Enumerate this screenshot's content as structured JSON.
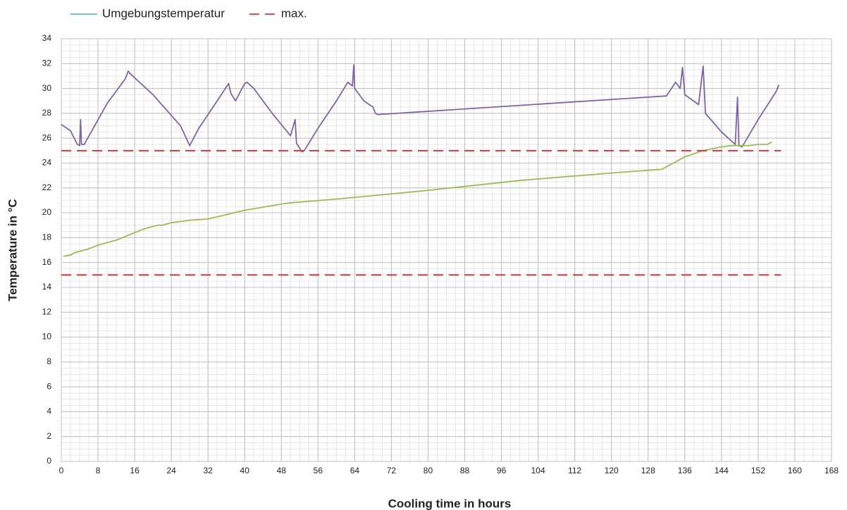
{
  "chart_data": {
    "type": "line",
    "xlabel": "Cooling time in hours",
    "ylabel": "Temperature in °C",
    "xlim": [
      0,
      168
    ],
    "ylim": [
      0,
      34
    ],
    "xticks": [
      0,
      8,
      16,
      24,
      32,
      40,
      48,
      56,
      64,
      72,
      80,
      88,
      96,
      104,
      112,
      120,
      128,
      136,
      144,
      152,
      160,
      168
    ],
    "yticks": [
      0,
      2,
      4,
      6,
      8,
      10,
      12,
      14,
      16,
      18,
      20,
      22,
      24,
      26,
      28,
      30,
      32,
      34
    ],
    "grid": true,
    "xminor": 2,
    "yminor": 0.5,
    "legend": [
      {
        "label": "Umgebungstemperatur",
        "color": "#4bacc6",
        "dashed": false
      },
      {
        "label": "max.",
        "color": "#d9383a",
        "dashed": true
      }
    ],
    "series": [
      {
        "color": "#8064a2",
        "dashed": false,
        "x": [
          0,
          2,
          3.5,
          4,
          4.2,
          4.4,
          5,
          10,
          14,
          14.6,
          15,
          20,
          26,
          28,
          30,
          34,
          36.5,
          37,
          38,
          40,
          40.5,
          42,
          46,
          50,
          51,
          51.3,
          52.5,
          53,
          56,
          60,
          62,
          62.5,
          63.5,
          63.8,
          64,
          66,
          68,
          68.5,
          69,
          132,
          134,
          135,
          135.5,
          136,
          139,
          140,
          140.5,
          144,
          147,
          147.5,
          147.8,
          148.5,
          152,
          156,
          156.5
        ],
        "values": [
          27.1,
          26.6,
          25.5,
          25.4,
          27.5,
          25.5,
          25.5,
          28.8,
          30.8,
          31.4,
          31.2,
          29.5,
          27,
          25.4,
          26.8,
          29,
          30.4,
          29.6,
          29,
          30.4,
          30.5,
          30,
          28,
          26.2,
          27.5,
          25.6,
          24.9,
          25,
          26.8,
          29,
          30.2,
          30.5,
          30.2,
          31.9,
          30,
          29,
          28.5,
          28,
          27.9,
          29.4,
          30.5,
          30,
          31.7,
          29.5,
          28.7,
          31.8,
          28,
          26.5,
          25.5,
          29.3,
          25.4,
          25.3,
          27.5,
          29.8,
          30.3
        ]
      },
      {
        "color": "#9bbb59",
        "dashed": false,
        "x": [
          0.5,
          2,
          3,
          6,
          8,
          12,
          14,
          18,
          21,
          22,
          24,
          26,
          28,
          32,
          40,
          48,
          50,
          60,
          80,
          100,
          120,
          131,
          136,
          140,
          144,
          146,
          150,
          152,
          154,
          155
        ],
        "values": [
          16.5,
          16.6,
          16.8,
          17.1,
          17.4,
          17.8,
          18.1,
          18.7,
          19,
          19,
          19.2,
          19.3,
          19.4,
          19.5,
          20.2,
          20.7,
          20.8,
          21.1,
          21.8,
          22.6,
          23.2,
          23.5,
          24.5,
          25,
          25.3,
          25.4,
          25.4,
          25.5,
          25.5,
          25.7
        ]
      },
      {
        "color": "#d9383a",
        "dashed": true,
        "x": [
          0,
          157
        ],
        "values": [
          25,
          25
        ]
      },
      {
        "color": "#d9383a",
        "dashed": true,
        "x": [
          0,
          157
        ],
        "values": [
          15,
          15
        ]
      }
    ]
  }
}
